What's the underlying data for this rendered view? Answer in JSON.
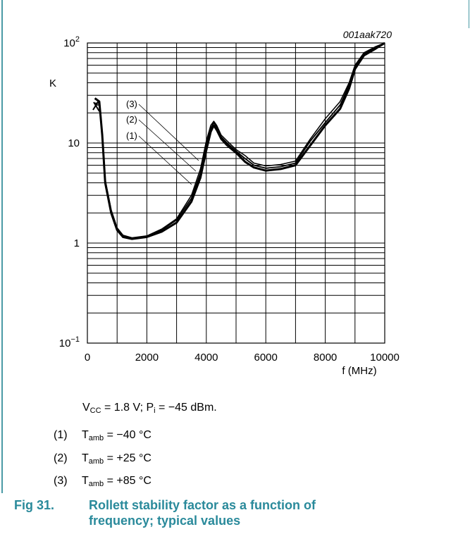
{
  "figure": {
    "label": "Fig 31.",
    "title": "Rollett stability factor as a function of frequency; typical values"
  },
  "conditions": {
    "vcc_sym": "V",
    "vcc_sub": "CC",
    "vcc_val": " = 1.8 V; P",
    "pi_sub": "i",
    "pi_val": " = −45 dBm."
  },
  "notes": [
    {
      "num": "(1)",
      "sym": "T",
      "sub": "amb",
      "text": " = −40 °C"
    },
    {
      "num": "(2)",
      "sym": "T",
      "sub": "amb",
      "text": " = +25 °C"
    },
    {
      "num": "(3)",
      "sym": "T",
      "sub": "amb",
      "text": " = +85 °C"
    }
  ],
  "chart_data": {
    "type": "line",
    "code": "001aak720",
    "xlabel": "f (MHz)",
    "ylabel": "K",
    "xlim": [
      0,
      10000
    ],
    "ylim": [
      0.1,
      100
    ],
    "yscale": "log",
    "grid": true,
    "x_ticks": [
      "0",
      "2000",
      "4000",
      "6000",
      "8000",
      "10000"
    ],
    "y_ticks": [
      {
        "value": 0.1,
        "base": "10",
        "exp": "−1"
      },
      {
        "value": 1,
        "base": "1",
        "exp": ""
      },
      {
        "value": 10,
        "base": "10",
        "exp": ""
      },
      {
        "value": 100,
        "base": "10",
        "exp": "2"
      }
    ],
    "series_labels": [
      "(3)",
      "(2)",
      "(1)"
    ],
    "series": [
      {
        "name": "(1)",
        "points": [
          [
            250,
            28
          ],
          [
            400,
            26
          ],
          [
            500,
            12
          ],
          [
            600,
            4
          ],
          [
            800,
            2
          ],
          [
            1000,
            1.35
          ],
          [
            1200,
            1.15
          ],
          [
            1500,
            1.1
          ],
          [
            2000,
            1.15
          ],
          [
            2500,
            1.3
          ],
          [
            3000,
            1.6
          ],
          [
            3500,
            2.6
          ],
          [
            3800,
            4.5
          ],
          [
            4000,
            8.5
          ],
          [
            4150,
            13
          ],
          [
            4250,
            15
          ],
          [
            4350,
            13.5
          ],
          [
            4500,
            11
          ],
          [
            4700,
            9.5
          ],
          [
            5000,
            8
          ],
          [
            5300,
            6.5
          ],
          [
            5600,
            5.7
          ],
          [
            6000,
            5.3
          ],
          [
            6500,
            5.5
          ],
          [
            7000,
            6
          ],
          [
            7500,
            9.5
          ],
          [
            8000,
            15
          ],
          [
            8500,
            22
          ],
          [
            8800,
            35
          ],
          [
            9000,
            55
          ],
          [
            9300,
            75
          ],
          [
            9700,
            88
          ],
          [
            10000,
            100
          ]
        ]
      },
      {
        "name": "(2)",
        "points": [
          [
            250,
            25
          ],
          [
            400,
            25
          ],
          [
            500,
            12
          ],
          [
            600,
            4.2
          ],
          [
            800,
            2.1
          ],
          [
            1000,
            1.4
          ],
          [
            1200,
            1.18
          ],
          [
            1500,
            1.12
          ],
          [
            2000,
            1.17
          ],
          [
            2500,
            1.35
          ],
          [
            3000,
            1.7
          ],
          [
            3500,
            2.8
          ],
          [
            3800,
            5
          ],
          [
            4000,
            9.5
          ],
          [
            4150,
            14
          ],
          [
            4250,
            16
          ],
          [
            4350,
            14.5
          ],
          [
            4500,
            11.5
          ],
          [
            4700,
            10
          ],
          [
            5000,
            8.3
          ],
          [
            5300,
            7
          ],
          [
            5600,
            6
          ],
          [
            6000,
            5.6
          ],
          [
            6500,
            5.8
          ],
          [
            7000,
            6.3
          ],
          [
            7500,
            10.5
          ],
          [
            8000,
            16
          ],
          [
            8500,
            24
          ],
          [
            8800,
            38
          ],
          [
            9000,
            58
          ],
          [
            9300,
            78
          ],
          [
            9700,
            90
          ],
          [
            10000,
            100
          ]
        ]
      },
      {
        "name": "(3)",
        "points": [
          [
            250,
            24
          ],
          [
            400,
            24
          ],
          [
            500,
            12.5
          ],
          [
            600,
            4.3
          ],
          [
            800,
            2.15
          ],
          [
            1000,
            1.42
          ],
          [
            1200,
            1.2
          ],
          [
            1500,
            1.13
          ],
          [
            2000,
            1.18
          ],
          [
            2500,
            1.38
          ],
          [
            3000,
            1.75
          ],
          [
            3500,
            3
          ],
          [
            3800,
            5.5
          ],
          [
            4000,
            10.5
          ],
          [
            4150,
            15
          ],
          [
            4250,
            16.5
          ],
          [
            4350,
            15
          ],
          [
            4500,
            12
          ],
          [
            4700,
            10.5
          ],
          [
            5000,
            8.6
          ],
          [
            5300,
            7.5
          ],
          [
            5600,
            6.3
          ],
          [
            6000,
            5.9
          ],
          [
            6500,
            6.1
          ],
          [
            7000,
            6.6
          ],
          [
            7500,
            11
          ],
          [
            8000,
            17.5
          ],
          [
            8500,
            26
          ],
          [
            8800,
            40
          ],
          [
            9000,
            60
          ],
          [
            9300,
            80
          ],
          [
            9700,
            92
          ],
          [
            10000,
            100
          ]
        ]
      }
    ]
  }
}
